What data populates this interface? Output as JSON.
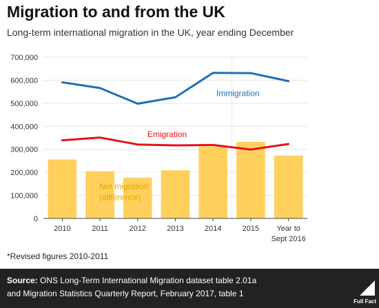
{
  "header": {
    "title": "Migration to and from the UK",
    "subtitle": "Long-term international migration in the UK, year ending December"
  },
  "chart_data": {
    "type": "bar",
    "categories": [
      "2010",
      "2011",
      "2012",
      "2013",
      "2014",
      "2015",
      "Year to Sept 2016"
    ],
    "category_lines": [
      [
        "2010"
      ],
      [
        "2011"
      ],
      [
        "2012"
      ],
      [
        "2013"
      ],
      [
        "2014"
      ],
      [
        "2015"
      ],
      [
        "Year to",
        "Sept 2016"
      ]
    ],
    "ylim": [
      0,
      700000
    ],
    "yticks": [
      0,
      100000,
      200000,
      300000,
      400000,
      500000,
      600000,
      700000
    ],
    "ytick_labels": [
      "0",
      "100,000",
      "200,000",
      "300,000",
      "400,000",
      "500,000",
      "600,000",
      "700,000"
    ],
    "grid": true,
    "series": [
      {
        "name": "Net migration (difference)",
        "name_lines": [
          "Net migration",
          "(difference)"
        ],
        "type": "bar",
        "color": "#ffd05c",
        "values": [
          256000,
          205000,
          177000,
          209000,
          313000,
          332000,
          273000
        ]
      },
      {
        "name": "Immigration",
        "type": "line",
        "color": "#1f6eb8",
        "values": [
          591000,
          566000,
          498000,
          526000,
          632000,
          631000,
          596000
        ]
      },
      {
        "name": "Emigration",
        "type": "line",
        "color": "#e8101a",
        "values": [
          339000,
          351000,
          321000,
          317000,
          319000,
          299000,
          323000
        ]
      }
    ]
  },
  "footnote": "*Revised figures 2010-2011",
  "footer": {
    "source_label": "Source:",
    "source_line1": " ONS Long-Term International Migration dataset table 2.01a",
    "source_line2": "and Migration Statistics Quarterly Report, February 2017, table 1",
    "logo_text": "Full Fact"
  },
  "colors": {
    "footer_bg": "#222222",
    "axis": "#444444",
    "grid": "#e6e6e6"
  }
}
